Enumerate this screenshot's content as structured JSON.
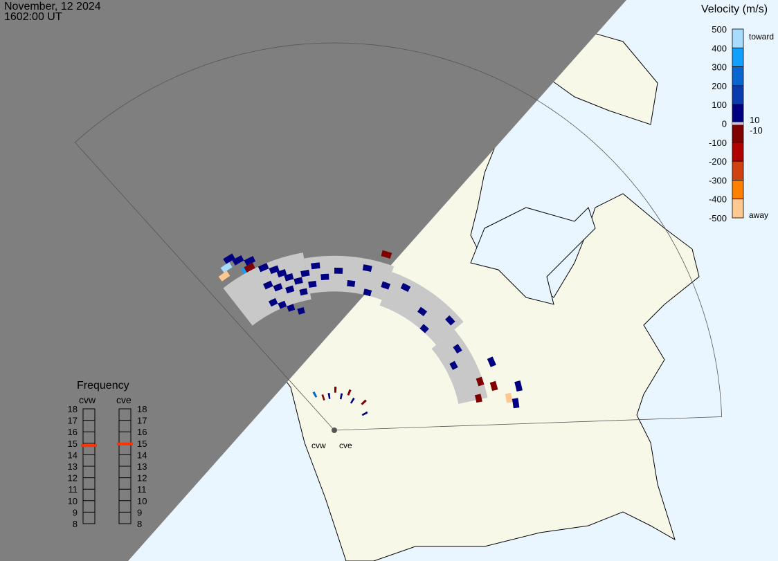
{
  "header": {
    "date": "November, 12 2024",
    "time": "1602:00 UT"
  },
  "colors": {
    "ocean": "#eaf6ff",
    "land": "#f8f8e8",
    "night": "#7f7f7f",
    "ground_scatter": "#c8c8c8",
    "freq_marker": "#ff3300"
  },
  "velocity_scale": {
    "title": "Velocity (m/s)",
    "ticks": [
      "500",
      "400",
      "300",
      "200",
      "100",
      "0",
      "-100",
      "-200",
      "-300",
      "-400",
      "-500"
    ],
    "inner_labels": [
      "10",
      "-10"
    ],
    "toward_label": "toward",
    "away_label": "away",
    "range": [
      -500,
      500
    ]
  },
  "frequency": {
    "title": "Frequency",
    "ticks": [
      "18",
      "17",
      "16",
      "15",
      "14",
      "13",
      "12",
      "11",
      "10",
      "9",
      "8"
    ],
    "range_mhz": [
      8,
      18
    ],
    "radars": [
      {
        "name": "cvw",
        "freq_mhz": 14.8
      },
      {
        "name": "cve",
        "freq_mhz": 14.95
      }
    ]
  },
  "radar_labels": [
    "cvw",
    "cve"
  ],
  "ground_scatter_sectors": [
    {
      "az": [
        -38,
        -10
      ],
      "gates": [
        20,
        28
      ]
    },
    {
      "az": [
        -10,
        20
      ],
      "gates": [
        21,
        27
      ]
    },
    {
      "az": [
        20,
        50
      ],
      "gates": [
        20,
        26
      ]
    },
    {
      "az": [
        50,
        78
      ],
      "gates": [
        19,
        24
      ]
    }
  ],
  "cells": [
    {
      "az": -35,
      "gate": 30,
      "vel": 420
    },
    {
      "az": -37,
      "gate": 29,
      "vel": -480
    },
    {
      "az": -33,
      "gate": 31,
      "vel": 80
    },
    {
      "az": -31,
      "gate": 30,
      "vel": 60
    },
    {
      "az": -28,
      "gate": 29,
      "vel": 50
    },
    {
      "az": -30,
      "gate": 28,
      "vel": 300
    },
    {
      "az": -29,
      "gate": 28,
      "vel": -60
    },
    {
      "az": -25,
      "gate": 27,
      "vel": 70
    },
    {
      "az": -22,
      "gate": 26,
      "vel": 60
    },
    {
      "az": -20,
      "gate": 25,
      "vel": 80
    },
    {
      "az": -18,
      "gate": 24,
      "vel": 60
    },
    {
      "az": -26,
      "gate": 24,
      "vel": 70
    },
    {
      "az": -23,
      "gate": 23,
      "vel": 50
    },
    {
      "az": -19,
      "gate": 22,
      "vel": 90
    },
    {
      "az": -15,
      "gate": 23,
      "vel": 60
    },
    {
      "az": -12,
      "gate": 24,
      "vel": 80
    },
    {
      "az": -10,
      "gate": 22,
      "vel": 60
    },
    {
      "az": -14,
      "gate": 21,
      "vel": 70
    },
    {
      "az": -8,
      "gate": 25,
      "vel": 50
    },
    {
      "az": -5,
      "gate": 23,
      "vel": 60
    },
    {
      "az": -27,
      "gate": 21,
      "vel": 60
    },
    {
      "az": -24,
      "gate": 20,
      "vel": 70
    },
    {
      "az": -21,
      "gate": 19,
      "vel": 80
    },
    {
      "az": -17,
      "gate": 18,
      "vel": 60
    },
    {
      "az": 0,
      "gate": 24,
      "vel": 60
    },
    {
      "az": 5,
      "gate": 22,
      "vel": 70
    },
    {
      "az": 10,
      "gate": 25,
      "vel": 50
    },
    {
      "az": 12,
      "gate": 21,
      "vel": 60
    },
    {
      "az": 18,
      "gate": 23,
      "vel": 80
    },
    {
      "az": 25,
      "gate": 24,
      "vel": 60
    },
    {
      "az": 35,
      "gate": 22,
      "vel": 70
    },
    {
      "az": 40,
      "gate": 20,
      "vel": 60
    },
    {
      "az": 45,
      "gate": 24,
      "vel": 60
    },
    {
      "az": 55,
      "gate": 22,
      "vel": 80
    },
    {
      "az": 60,
      "gate": 20,
      "vel": 60
    },
    {
      "az": 65,
      "gate": 26,
      "vel": 70
    },
    {
      "az": 70,
      "gate": 23,
      "vel": -90
    },
    {
      "az": 73,
      "gate": 25,
      "vel": -70
    },
    {
      "az": 76,
      "gate": 22,
      "vel": -60
    },
    {
      "az": 78,
      "gate": 27,
      "vel": -400
    },
    {
      "az": 80,
      "gate": 28,
      "vel": 60
    },
    {
      "az": 75,
      "gate": 29,
      "vel": 70
    },
    {
      "az": -20,
      "gate": 3,
      "vel": -80
    },
    {
      "az": -10,
      "gate": 3,
      "vel": 60
    },
    {
      "az": 0,
      "gate": 4,
      "vel": -70
    },
    {
      "az": 10,
      "gate": 3,
      "vel": 80
    },
    {
      "az": 20,
      "gate": 4,
      "vel": -60
    },
    {
      "az": 30,
      "gate": 3,
      "vel": 70
    },
    {
      "az": 45,
      "gate": 4,
      "vel": -90
    },
    {
      "az": 60,
      "gate": 3,
      "vel": 60
    },
    {
      "az": -30,
      "gate": 4,
      "vel": 250
    },
    {
      "az": 15,
      "gate": 28,
      "vel": -90
    }
  ]
}
